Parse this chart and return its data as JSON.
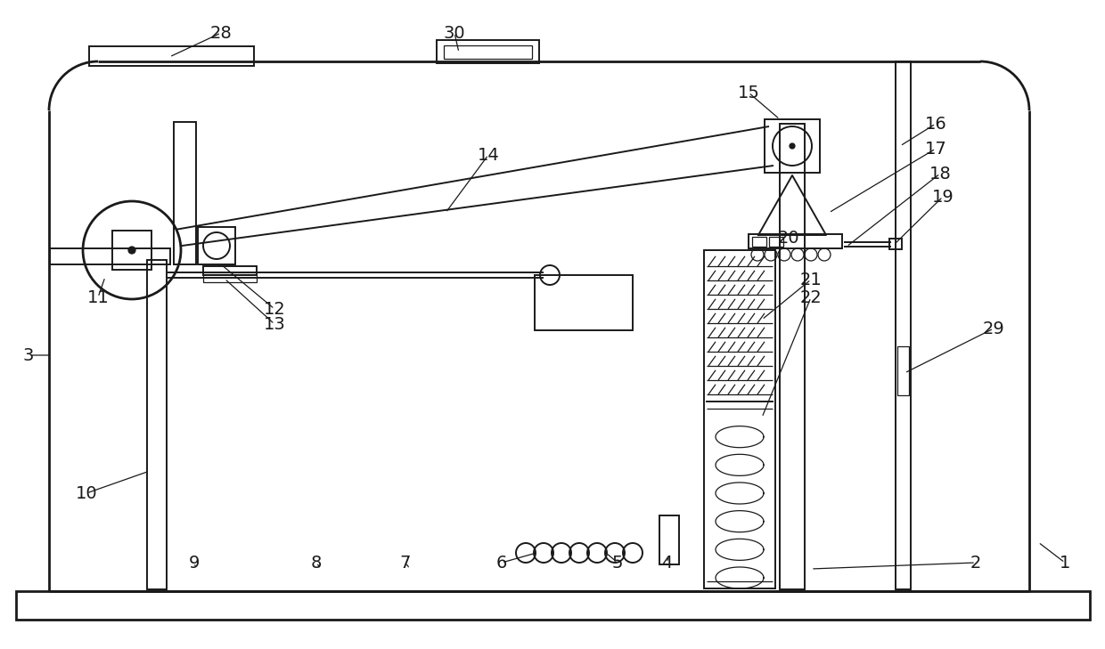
{
  "bg_color": "#ffffff",
  "line_color": "#1a1a1a",
  "fig_width": 12.4,
  "fig_height": 7.29,
  "dpi": 100
}
